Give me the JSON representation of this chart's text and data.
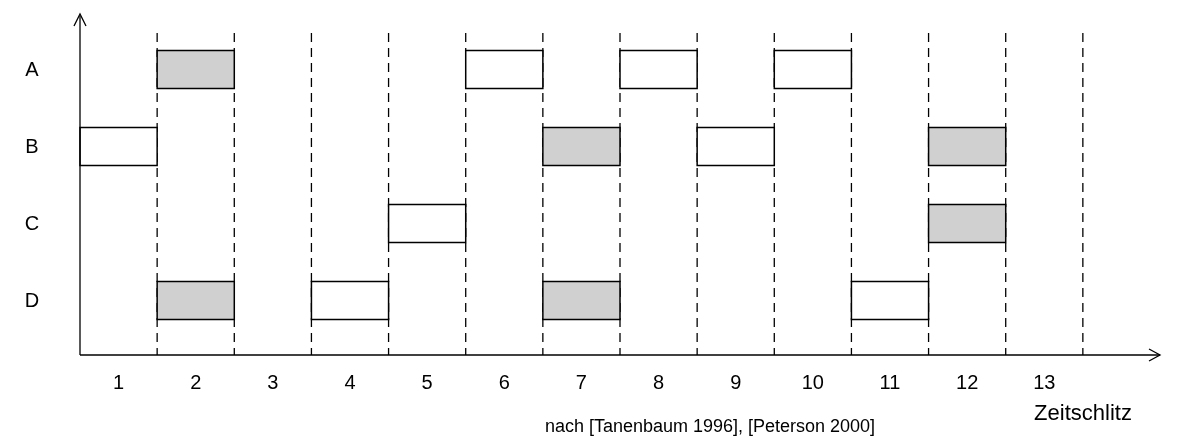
{
  "chart_data": {
    "type": "bar",
    "orientation": "horizontal",
    "xlabel": "Zeitschlitz",
    "annotations": [
      "nach [Tanenbaum 1996], [Peterson 2000]"
    ],
    "categories": [
      "A",
      "B",
      "C",
      "D"
    ],
    "series": [
      {
        "values": [
          1,
          1,
          1,
          1
        ],
        "base": [
          1.5,
          0.5,
          4.5,
          1.5
        ],
        "colors": [
          "#d0d0d0",
          "#ffffff",
          "#ffffff",
          "#d0d0d0"
        ]
      },
      {
        "values": [
          1,
          1,
          1,
          1
        ],
        "base": [
          5.5,
          6.5,
          11.5,
          3.5
        ],
        "colors": [
          "#ffffff",
          "#d0d0d0",
          "#d0d0d0",
          "#ffffff"
        ]
      },
      {
        "values": [
          1,
          1,
          null,
          1
        ],
        "base": [
          7.5,
          8.5,
          null,
          6.5
        ],
        "colors": [
          "#ffffff",
          "#ffffff",
          null,
          "#d0d0d0"
        ]
      },
      {
        "values": [
          1,
          1,
          null,
          1
        ],
        "base": [
          9.5,
          11.5,
          null,
          10.5
        ],
        "colors": [
          "#ffffff",
          "#d0d0d0",
          null,
          "#ffffff"
        ]
      }
    ],
    "xlim": [
      0.5,
      14.5
    ],
    "xticks": [
      1,
      2,
      3,
      4,
      5,
      6,
      7,
      8,
      9,
      10,
      11,
      12,
      13
    ],
    "ref_lines": [
      {
        "axis": "x",
        "value": 1.5,
        "line_style": "dashed"
      },
      {
        "axis": "x",
        "value": 2.5,
        "line_style": "dashed"
      },
      {
        "axis": "x",
        "value": 3.5,
        "line_style": "dashed"
      },
      {
        "axis": "x",
        "value": 4.5,
        "line_style": "dashed"
      },
      {
        "axis": "x",
        "value": 5.5,
        "line_style": "dashed"
      },
      {
        "axis": "x",
        "value": 6.5,
        "line_style": "dashed"
      },
      {
        "axis": "x",
        "value": 7.5,
        "line_style": "dashed"
      },
      {
        "axis": "x",
        "value": 8.5,
        "line_style": "dashed"
      },
      {
        "axis": "x",
        "value": 9.5,
        "line_style": "dashed"
      },
      {
        "axis": "x",
        "value": 10.5,
        "line_style": "dashed"
      },
      {
        "axis": "x",
        "value": 11.5,
        "line_style": "dashed"
      },
      {
        "axis": "x",
        "value": 12.5,
        "line_style": "dashed"
      },
      {
        "axis": "x",
        "value": 13.5,
        "line_style": "dashed"
      }
    ]
  }
}
